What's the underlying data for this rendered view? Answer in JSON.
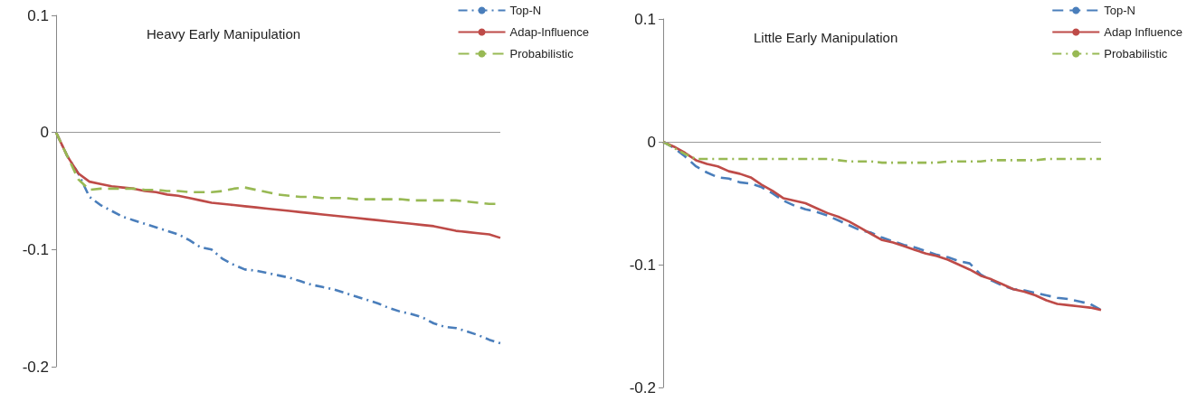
{
  "chart_data": [
    {
      "type": "line",
      "title": "Heavy Early Manipulation",
      "categories": [
        null,
        null,
        null,
        null,
        null,
        null,
        null,
        null,
        null,
        null,
        null,
        null,
        null,
        null,
        null,
        null,
        null,
        null,
        null,
        null,
        null,
        null,
        null,
        null,
        null,
        null,
        null,
        null,
        null,
        null,
        null,
        null,
        null,
        null,
        null,
        null,
        null,
        null,
        null,
        null,
        null
      ],
      "ylim": [
        -0.2,
        0.1
      ],
      "yticks": [
        -0.2,
        -0.1,
        0,
        0.1
      ],
      "grid": false,
      "legend": "top right",
      "marker": "none",
      "ref_lines": [
        {
          "axis": "y",
          "value": 0,
          "color": "#999999"
        }
      ],
      "series": [
        {
          "name": "Top-N",
          "color": "#4a7ebb",
          "line_style": "dotted",
          "values": [
            0,
            -0.02,
            -0.035,
            -0.055,
            -0.062,
            -0.067,
            -0.072,
            -0.075,
            -0.078,
            -0.081,
            -0.084,
            -0.087,
            -0.092,
            -0.098,
            -0.1,
            -0.108,
            -0.113,
            -0.117,
            -0.118,
            -0.12,
            -0.122,
            -0.124,
            -0.127,
            -0.13,
            -0.132,
            -0.134,
            -0.137,
            -0.14,
            -0.143,
            -0.146,
            -0.15,
            -0.153,
            -0.155,
            -0.158,
            -0.163,
            -0.166,
            -0.167,
            -0.17,
            -0.173,
            -0.177,
            -0.18
          ]
        },
        {
          "name": "Adap-Influence",
          "color": "#be4b48",
          "line_style": "solid",
          "values": [
            0,
            -0.02,
            -0.035,
            -0.042,
            -0.044,
            -0.046,
            -0.047,
            -0.048,
            -0.05,
            -0.051,
            -0.053,
            -0.054,
            -0.056,
            -0.058,
            -0.06,
            -0.061,
            -0.062,
            -0.063,
            -0.064,
            -0.065,
            -0.066,
            -0.067,
            -0.068,
            -0.069,
            -0.07,
            -0.071,
            -0.072,
            -0.073,
            -0.074,
            -0.075,
            -0.076,
            -0.077,
            -0.078,
            -0.079,
            -0.08,
            -0.082,
            -0.084,
            -0.085,
            -0.086,
            -0.087,
            -0.09
          ]
        },
        {
          "name": "Probabilistic",
          "color": "#98b954",
          "line_style": "dashed",
          "values": [
            0,
            -0.02,
            -0.04,
            -0.049,
            -0.048,
            -0.048,
            -0.048,
            -0.048,
            -0.049,
            -0.049,
            -0.05,
            -0.05,
            -0.051,
            -0.051,
            -0.051,
            -0.05,
            -0.048,
            -0.047,
            -0.049,
            -0.051,
            -0.053,
            -0.054,
            -0.055,
            -0.055,
            -0.056,
            -0.056,
            -0.056,
            -0.057,
            -0.057,
            -0.057,
            -0.057,
            -0.057,
            -0.058,
            -0.058,
            -0.058,
            -0.058,
            -0.058,
            -0.059,
            -0.06,
            -0.061,
            -0.061
          ]
        }
      ]
    },
    {
      "type": "line",
      "title": "Little Early Manipulation",
      "categories": [
        null,
        null,
        null,
        null,
        null,
        null,
        null,
        null,
        null,
        null,
        null,
        null,
        null,
        null,
        null,
        null,
        null,
        null,
        null,
        null,
        null,
        null,
        null,
        null,
        null,
        null,
        null,
        null,
        null,
        null,
        null,
        null,
        null,
        null,
        null,
        null,
        null,
        null,
        null,
        null,
        null
      ],
      "ylim": [
        -0.2,
        0.1
      ],
      "yticks": [
        -0.2,
        -0.1,
        0,
        0.1
      ],
      "grid": false,
      "legend": "top right",
      "marker": "none",
      "ref_lines": [
        {
          "axis": "y",
          "value": 0,
          "color": "#999999"
        }
      ],
      "series": [
        {
          "name": "Top-N",
          "color": "#4a7ebb",
          "line_style": "dashed",
          "values": [
            0,
            -0.005,
            -0.012,
            -0.02,
            -0.025,
            -0.029,
            -0.03,
            -0.033,
            -0.034,
            -0.037,
            -0.042,
            -0.048,
            -0.052,
            -0.055,
            -0.057,
            -0.06,
            -0.064,
            -0.068,
            -0.072,
            -0.074,
            -0.078,
            -0.081,
            -0.084,
            -0.086,
            -0.089,
            -0.092,
            -0.094,
            -0.097,
            -0.099,
            -0.108,
            -0.113,
            -0.117,
            -0.12,
            -0.121,
            -0.123,
            -0.125,
            -0.127,
            -0.128,
            -0.13,
            -0.132,
            -0.137
          ]
        },
        {
          "name": "Adap Influence",
          "color": "#be4b48",
          "line_style": "solid",
          "values": [
            0,
            -0.004,
            -0.009,
            -0.015,
            -0.018,
            -0.02,
            -0.024,
            -0.026,
            -0.029,
            -0.035,
            -0.04,
            -0.046,
            -0.048,
            -0.05,
            -0.054,
            -0.058,
            -0.061,
            -0.065,
            -0.07,
            -0.075,
            -0.08,
            -0.082,
            -0.085,
            -0.088,
            -0.091,
            -0.093,
            -0.096,
            -0.1,
            -0.104,
            -0.109,
            -0.112,
            -0.116,
            -0.12,
            -0.122,
            -0.125,
            -0.129,
            -0.132,
            -0.133,
            -0.134,
            -0.135,
            -0.137
          ]
        },
        {
          "name": "Probabilistic",
          "color": "#98b954",
          "line_style": "dotted",
          "values": [
            0,
            -0.005,
            -0.01,
            -0.014,
            -0.014,
            -0.014,
            -0.014,
            -0.014,
            -0.014,
            -0.014,
            -0.014,
            -0.014,
            -0.014,
            -0.014,
            -0.014,
            -0.014,
            -0.015,
            -0.016,
            -0.016,
            -0.016,
            -0.017,
            -0.017,
            -0.017,
            -0.017,
            -0.017,
            -0.017,
            -0.016,
            -0.016,
            -0.016,
            -0.016,
            -0.015,
            -0.015,
            -0.015,
            -0.015,
            -0.015,
            -0.014,
            -0.014,
            -0.014,
            -0.014,
            -0.014,
            -0.014
          ]
        }
      ]
    }
  ]
}
